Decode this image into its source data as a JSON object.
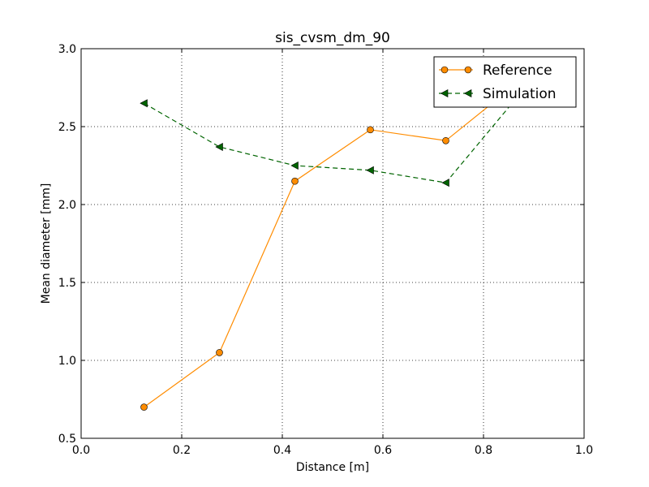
{
  "chart_data": {
    "type": "line",
    "title": "sis_cvsm_dm_90",
    "xlabel": "Distance [m]",
    "ylabel": "Mean diameter [mm]",
    "xlim": [
      0.0,
      1.0
    ],
    "ylim": [
      0.5,
      3.0
    ],
    "xticks": [
      0.0,
      0.2,
      0.4,
      0.6,
      0.8,
      1.0
    ],
    "xtick_labels": [
      "0.0",
      "0.2",
      "0.4",
      "0.6",
      "0.8",
      "1.0"
    ],
    "yticks": [
      0.5,
      1.0,
      1.5,
      2.0,
      2.5,
      3.0
    ],
    "ytick_labels": [
      "0.5",
      "1.0",
      "1.5",
      "2.0",
      "2.5",
      "3.0"
    ],
    "grid": true,
    "legend_position": "top-right",
    "series": [
      {
        "name": "Reference",
        "color": "#ff8c00",
        "line_style": "solid",
        "marker": "circle",
        "x": [
          0.125,
          0.275,
          0.425,
          0.575,
          0.725,
          0.875
        ],
        "y": [
          0.7,
          1.05,
          2.15,
          2.48,
          2.41,
          2.8
        ]
      },
      {
        "name": "Simulation",
        "color": "#006400",
        "line_style": "dashed",
        "marker": "triangle-left",
        "x": [
          0.125,
          0.275,
          0.425,
          0.575,
          0.725,
          0.875
        ],
        "y": [
          2.65,
          2.37,
          2.25,
          2.22,
          2.14,
          2.72
        ]
      }
    ]
  }
}
